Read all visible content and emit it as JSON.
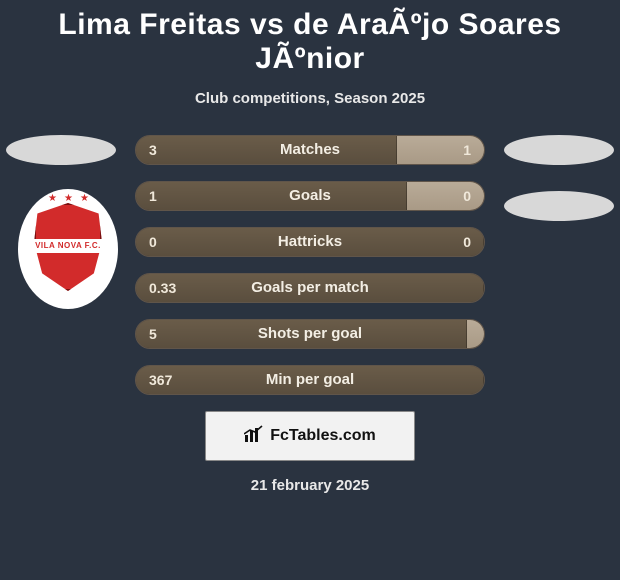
{
  "title": "Lima Freitas vs de AraÃºjo Soares JÃºnior",
  "subtitle": "Club competitions, Season 2025",
  "badge_text": "VILA NOVA F.C.",
  "stats": [
    {
      "label": "Matches",
      "left_val": "3",
      "right_val": "1",
      "left_pct": 75,
      "right_pct": 25
    },
    {
      "label": "Goals",
      "left_val": "1",
      "right_val": "0",
      "left_pct": 78,
      "right_pct": 22
    },
    {
      "label": "Hattricks",
      "left_val": "0",
      "right_val": "0",
      "left_pct": 100,
      "right_pct": 0
    },
    {
      "label": "Goals per match",
      "left_val": "0.33",
      "right_val": "",
      "left_pct": 100,
      "right_pct": 0
    },
    {
      "label": "Shots per goal",
      "left_val": "5",
      "right_val": "",
      "left_pct": 95,
      "right_pct": 5
    },
    {
      "label": "Min per goal",
      "left_val": "367",
      "right_val": "",
      "left_pct": 100,
      "right_pct": 0
    }
  ],
  "footer_brand": "FcTables.com",
  "footer_date": "21 february 2025",
  "colors": {
    "background": "#2a3340",
    "bar_base_top": "#4a4236",
    "bar_base_bot": "#40382e",
    "bar_left_top": "#6a5c49",
    "bar_left_bot": "#5a4e3e",
    "bar_right_top": "#b9ab98",
    "bar_right_bot": "#a99a86",
    "badge_red": "#d22b2b"
  }
}
